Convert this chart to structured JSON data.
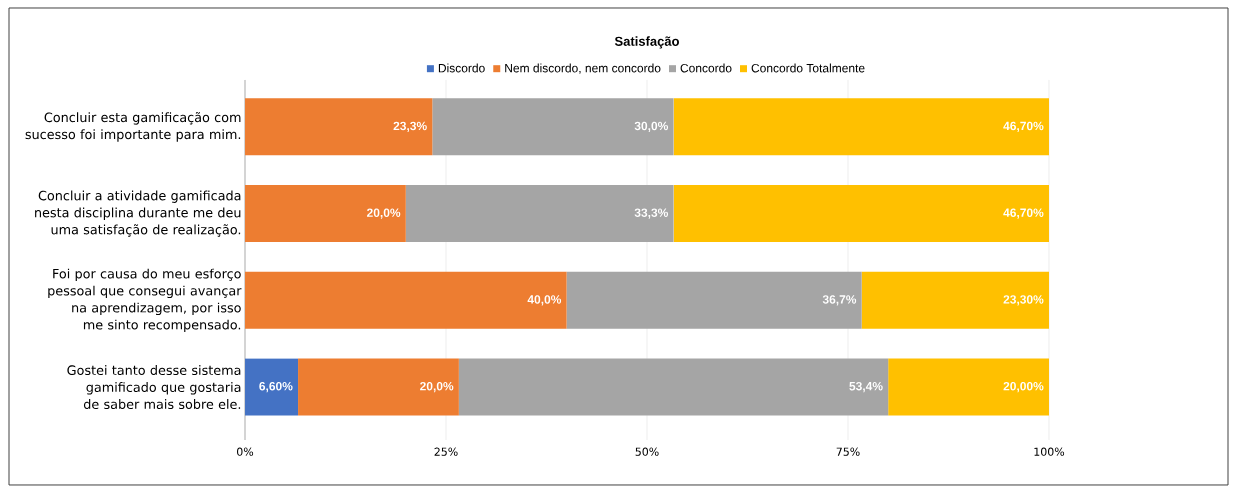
{
  "chart_data": {
    "type": "bar",
    "orientation": "horizontal",
    "stacked": true,
    "title": "Satisfação",
    "categories": [
      "Concluir esta gamificação com sucesso foi importante para mim.",
      "Concluir a atividade gamificada nesta disciplina durante me deu uma satisfação de realização.",
      "Foi por causa do meu esforço pessoal que consegui avançar na aprendizagem, por isso me sinto recompensado.",
      "Gostei tanto desse sistema gamificado que gostaria de saber mais sobre ele."
    ],
    "series": [
      {
        "name": "Discordo",
        "color": "#4472c4",
        "values": [
          null,
          null,
          null,
          6.6
        ],
        "value_labels": [
          null,
          null,
          null,
          "6,60%"
        ]
      },
      {
        "name": "Nem discordo, nem concordo",
        "color": "#ed7d31",
        "values": [
          23.3,
          20.0,
          40.0,
          20.0
        ],
        "value_labels": [
          "23,3%",
          "20,0%",
          "40,0%",
          "20,0%"
        ]
      },
      {
        "name": "Concordo",
        "color": "#a5a5a5",
        "values": [
          30.0,
          33.3,
          36.7,
          53.4
        ],
        "value_labels": [
          "30,0%",
          "33,3%",
          "36,7%",
          "53,4%"
        ]
      },
      {
        "name": "Concordo Totalmente",
        "color": "#ffc000",
        "values": [
          46.7,
          46.7,
          23.3,
          20.0
        ],
        "value_labels": [
          "46,70%",
          "46,70%",
          "23,30%",
          "20,00%"
        ]
      }
    ],
    "xlim": [
      0,
      100
    ],
    "xticks": [
      {
        "value": 0,
        "label": "0%"
      },
      {
        "value": 25,
        "label": "25%"
      },
      {
        "value": 50,
        "label": "50%"
      },
      {
        "value": 75,
        "label": "75%"
      },
      {
        "value": 100,
        "label": "100%"
      }
    ],
    "grid": "x",
    "legend": "top"
  }
}
